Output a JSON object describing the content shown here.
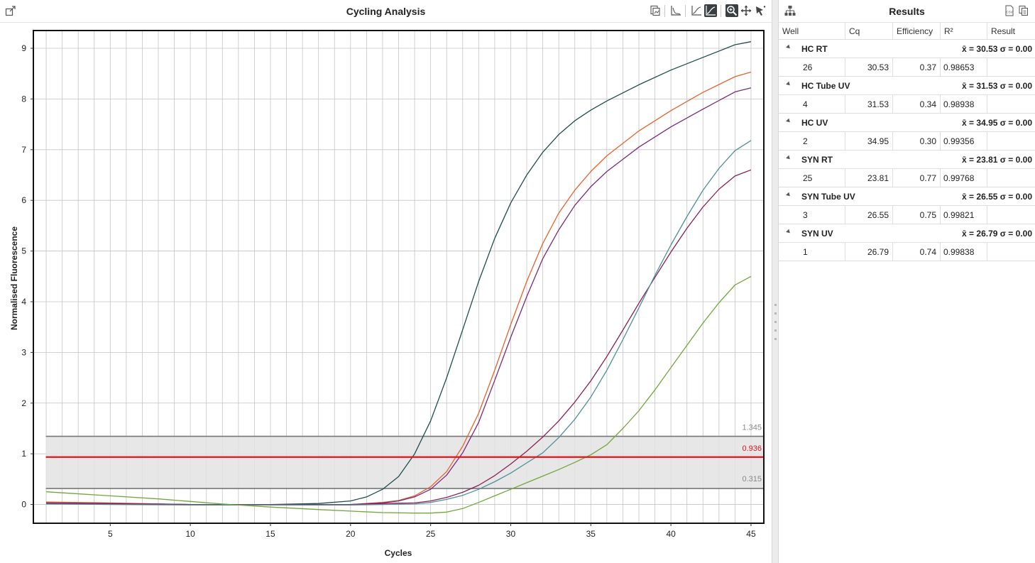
{
  "chart_panel": {
    "title": "Cycling Analysis"
  },
  "results_panel": {
    "title": "Results",
    "columns": [
      "Well",
      "Cq",
      "Efficiency",
      "R²",
      "Result"
    ],
    "groups": [
      {
        "name": "HC RT",
        "stat": "x̄ = 30.53 σ = 0.00",
        "well": "26",
        "cq": "30.53",
        "efficiency": "0.37",
        "r2": "0.98653",
        "result": ""
      },
      {
        "name": "HC Tube UV",
        "stat": "x̄ = 31.53 σ = 0.00",
        "well": "4",
        "cq": "31.53",
        "efficiency": "0.34",
        "r2": "0.98938",
        "result": ""
      },
      {
        "name": "HC UV",
        "stat": "x̄ = 34.95 σ = 0.00",
        "well": "2",
        "cq": "34.95",
        "efficiency": "0.30",
        "r2": "0.99356",
        "result": ""
      },
      {
        "name": "SYN RT",
        "stat": "x̄ = 23.81 σ = 0.00",
        "well": "25",
        "cq": "23.81",
        "efficiency": "0.77",
        "r2": "0.99768",
        "result": ""
      },
      {
        "name": "SYN Tube UV",
        "stat": "x̄ = 26.55 σ = 0.00",
        "well": "3",
        "cq": "26.55",
        "efficiency": "0.75",
        "r2": "0.99821",
        "result": ""
      },
      {
        "name": "SYN UV",
        "stat": "x̄ = 26.79 σ = 0.00",
        "well": "1",
        "cq": "26.79",
        "efficiency": "0.74",
        "r2": "0.99838",
        "result": ""
      }
    ]
  },
  "icons": {
    "expand": "expand-icon",
    "copy_image": "copy-image-icon",
    "log_scale": "log-scale-icon",
    "threshold": "threshold-icon",
    "normalise": "normalise-icon",
    "zoom": "zoom-icon",
    "pan": "pan-icon",
    "select": "select-arrow-icon",
    "hierarchy": "hierarchy-icon",
    "export_csv": "export-csv-icon",
    "copy_results": "copy-results-icon"
  },
  "chart_data": {
    "type": "line",
    "xlabel": "Cycles",
    "ylabel": "Normalised Fluorescence",
    "xlim": [
      0.2,
      45.8
    ],
    "ylim": [
      -0.37,
      9.35
    ],
    "xticks": [
      5,
      10,
      15,
      20,
      25,
      30,
      35,
      40,
      45
    ],
    "yticks": [
      0,
      1,
      2,
      3,
      4,
      5,
      6,
      7,
      8,
      9
    ],
    "grid": true,
    "threshold": {
      "value": 0.936,
      "label": "0.936",
      "color": "#e8141a"
    },
    "band": {
      "lower": 0.315,
      "upper": 1.345,
      "lower_label": "0.315",
      "upper_label": "1.345",
      "fill": "#e3e3e3",
      "line_color": "#777777"
    },
    "series": [
      {
        "color": "#1f4e4c",
        "x": [
          1,
          5,
          10,
          15,
          18,
          20,
          21,
          22,
          23,
          24,
          25,
          26,
          27,
          28,
          29,
          30,
          31,
          32,
          33,
          34,
          35,
          36,
          38,
          40,
          42,
          44,
          45
        ],
        "y": [
          0.03,
          0.02,
          0.0,
          0.0,
          0.02,
          0.07,
          0.15,
          0.3,
          0.55,
          1.0,
          1.65,
          2.5,
          3.45,
          4.4,
          5.25,
          5.95,
          6.5,
          6.95,
          7.3,
          7.57,
          7.78,
          7.96,
          8.28,
          8.57,
          8.82,
          9.07,
          9.13
        ]
      },
      {
        "color": "#e8622c",
        "x": [
          1,
          5,
          10,
          15,
          20,
          22,
          23,
          24,
          25,
          26,
          27,
          28,
          29,
          30,
          31,
          32,
          33,
          34,
          35,
          36,
          38,
          40,
          42,
          44,
          45
        ],
        "y": [
          0.05,
          0.03,
          0.0,
          0.0,
          0.0,
          0.04,
          0.08,
          0.17,
          0.35,
          0.65,
          1.15,
          1.8,
          2.65,
          3.55,
          4.4,
          5.15,
          5.75,
          6.2,
          6.57,
          6.88,
          7.37,
          7.77,
          8.13,
          8.44,
          8.53
        ]
      },
      {
        "color": "#7a2a7c",
        "x": [
          1,
          5,
          10,
          15,
          20,
          22,
          23,
          24,
          25,
          26,
          27,
          28,
          29,
          30,
          31,
          32,
          33,
          34,
          35,
          36,
          38,
          40,
          42,
          44,
          45
        ],
        "y": [
          0.03,
          0.02,
          0.0,
          0.0,
          0.0,
          0.03,
          0.07,
          0.15,
          0.3,
          0.58,
          1.02,
          1.62,
          2.45,
          3.3,
          4.1,
          4.85,
          5.42,
          5.9,
          6.27,
          6.57,
          7.05,
          7.45,
          7.8,
          8.14,
          8.22
        ]
      },
      {
        "color": "#8a1f55",
        "x": [
          1,
          5,
          10,
          15,
          20,
          22,
          24,
          25,
          26,
          27,
          28,
          29,
          30,
          31,
          32,
          33,
          34,
          35,
          36,
          37,
          38,
          39,
          40,
          41,
          42,
          43,
          44,
          45
        ],
        "y": [
          0.02,
          0.01,
          0.0,
          0.0,
          0.0,
          0.02,
          0.03,
          0.07,
          0.14,
          0.24,
          0.38,
          0.57,
          0.8,
          1.05,
          1.33,
          1.65,
          2.02,
          2.44,
          2.92,
          3.44,
          3.97,
          4.48,
          4.98,
          5.45,
          5.87,
          6.22,
          6.48,
          6.6
        ]
      },
      {
        "color": "#4f8f9a",
        "x": [
          1,
          5,
          10,
          15,
          20,
          22,
          24,
          25,
          26,
          27,
          28,
          29,
          30,
          31,
          32,
          33,
          34,
          35,
          36,
          37,
          38,
          39,
          40,
          41,
          42,
          43,
          44,
          45
        ],
        "y": [
          0.01,
          0.0,
          -0.01,
          -0.01,
          -0.01,
          0.0,
          0.01,
          0.04,
          0.1,
          0.18,
          0.3,
          0.45,
          0.62,
          0.82,
          1.02,
          1.32,
          1.68,
          2.12,
          2.65,
          3.25,
          3.88,
          4.52,
          5.12,
          5.68,
          6.2,
          6.63,
          6.98,
          7.18
        ]
      },
      {
        "color": "#6fa83a",
        "x": [
          1,
          5,
          8,
          10,
          12,
          15,
          18,
          20,
          22,
          24,
          25,
          26,
          27,
          28,
          29,
          30,
          31,
          32,
          33,
          34,
          35,
          36,
          37,
          38,
          39,
          40,
          41,
          42,
          43,
          44,
          45
        ],
        "y": [
          0.25,
          0.17,
          0.11,
          0.06,
          0.01,
          -0.05,
          -0.1,
          -0.13,
          -0.16,
          -0.17,
          -0.17,
          -0.15,
          -0.08,
          0.04,
          0.17,
          0.3,
          0.43,
          0.56,
          0.69,
          0.83,
          0.98,
          1.18,
          1.5,
          1.85,
          2.26,
          2.7,
          3.14,
          3.58,
          3.98,
          4.33,
          4.5
        ]
      }
    ]
  }
}
